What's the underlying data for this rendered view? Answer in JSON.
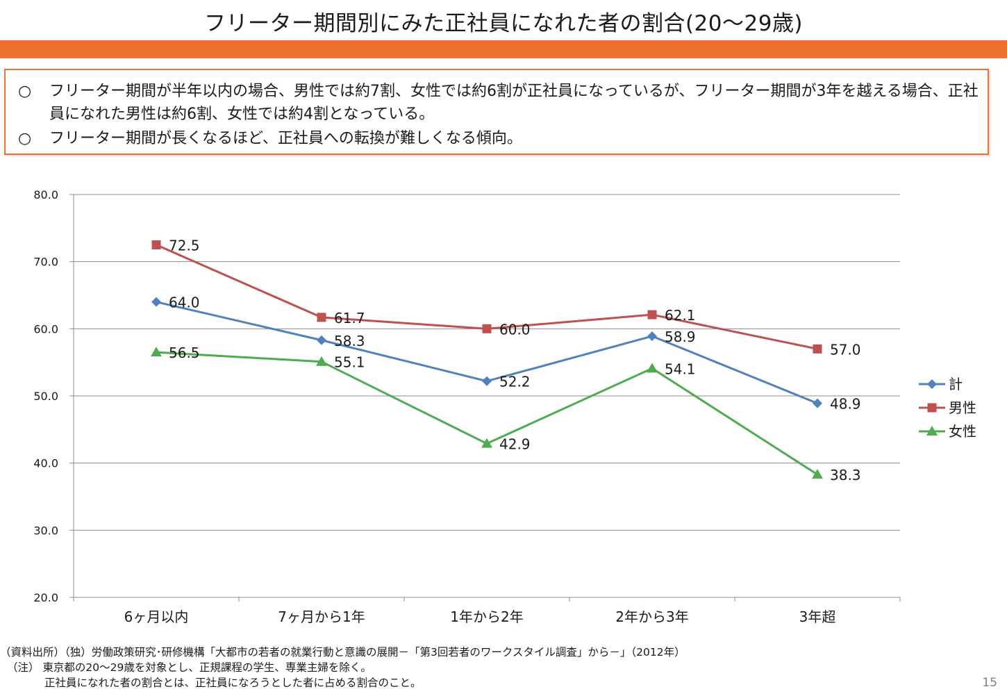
{
  "title": "フリーター期間別にみた正社員になれた者の割合(20～29歳)",
  "summary": {
    "bullet": "○",
    "items": [
      "フリーター期間が半年以内の場合、男性では約7割、女性では約6割が正社員になっているが、フリーター期間が3年を越える場合、正社員になれた男性は約6割、女性では約4割となっている。",
      "フリーター期間が長くなるほど、正社員への転換が難しくなる傾向。"
    ]
  },
  "chart_data": {
    "type": "line",
    "categories": [
      "6ヶ月以内",
      "7ヶ月から1年",
      "1年から2年",
      "2年から3年",
      "3年超"
    ],
    "series": [
      {
        "name": "計",
        "values": [
          64.0,
          58.3,
          52.2,
          58.9,
          48.9
        ],
        "color": "#4f81bd",
        "marker": "diamond"
      },
      {
        "name": "男性",
        "values": [
          72.5,
          61.7,
          60.0,
          62.1,
          57.0
        ],
        "color": "#c0504d",
        "marker": "square"
      },
      {
        "name": "女性",
        "values": [
          56.5,
          55.1,
          42.9,
          54.1,
          38.3
        ],
        "color": "#4dac4d",
        "marker": "triangle"
      }
    ],
    "ylim": [
      20,
      80
    ],
    "yticks": [
      "20.0",
      "30.0",
      "40.0",
      "50.0",
      "60.0",
      "70.0",
      "80.0"
    ],
    "grid": true,
    "legend": "right",
    "data_labels": true
  },
  "footnotes": {
    "source": "（資料出所）（独）労働政策研究･研修機構「大都市の若者の就業行動と意識の展開－「第3回若者のワークスタイル調査」から－」（2012年）",
    "note1": "（注） 東京都の20～29歳を対象とし、正規課程の学生、専業主婦を除く。",
    "note2": "正社員になれた者の割合とは、正社員になろうとした者に占める割合のこと。"
  },
  "page_number": "15"
}
